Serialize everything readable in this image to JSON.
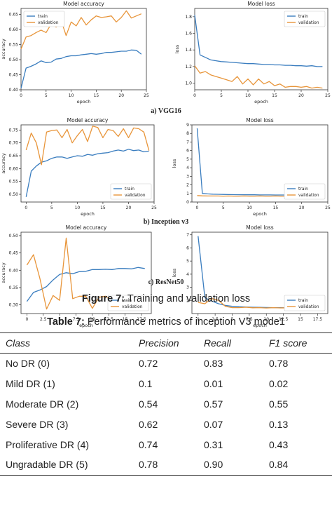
{
  "figure": {
    "caption_label": "Figure 7:",
    "caption_text": " Training and validation loss",
    "panels": [
      {
        "caption": "a) VGG16"
      },
      {
        "caption": "b) Inception v3"
      },
      {
        "caption": "c) ResNet50"
      }
    ]
  },
  "chart_data": [
    {
      "type": "line",
      "title": "Model accuracy",
      "xlabel": "epoch",
      "ylabel": "accuracy",
      "xlim": [
        0,
        25
      ],
      "ylim": [
        0.4,
        0.67
      ],
      "xticks": [
        0,
        5,
        10,
        15,
        20,
        25
      ],
      "yticks": [
        0.4,
        0.45,
        0.5,
        0.55,
        0.6,
        0.65
      ],
      "legend": "top-left",
      "series": [
        {
          "name": "train",
          "color": "#3a7dbf",
          "x": [
            0,
            1,
            2,
            3,
            4,
            5,
            6,
            7,
            8,
            9,
            10,
            11,
            12,
            13,
            14,
            15,
            16,
            17,
            18,
            19,
            20,
            21,
            22,
            23,
            24
          ],
          "y": [
            0.405,
            0.472,
            0.478,
            0.486,
            0.496,
            0.49,
            0.492,
            0.502,
            0.504,
            0.51,
            0.513,
            0.513,
            0.516,
            0.518,
            0.52,
            0.518,
            0.52,
            0.524,
            0.524,
            0.526,
            0.528,
            0.528,
            0.532,
            0.531,
            0.518
          ]
        },
        {
          "name": "validation",
          "color": "#e8953a",
          "x": [
            0,
            1,
            2,
            3,
            4,
            5,
            6,
            7,
            8,
            9,
            10,
            11,
            12,
            13,
            14,
            15,
            16,
            17,
            18,
            19,
            20,
            21,
            22,
            23,
            24
          ],
          "y": [
            0.535,
            0.575,
            0.58,
            0.59,
            0.598,
            0.59,
            0.618,
            0.608,
            0.63,
            0.58,
            0.625,
            0.612,
            0.64,
            0.615,
            0.632,
            0.645,
            0.64,
            0.642,
            0.645,
            0.625,
            0.64,
            0.662,
            0.638,
            0.645,
            0.652
          ]
        }
      ]
    },
    {
      "type": "line",
      "title": "Model loss",
      "xlabel": "epoch",
      "ylabel": "loss",
      "xlim": [
        0,
        25
      ],
      "ylim": [
        0.92,
        1.9
      ],
      "xticks": [
        0,
        5,
        10,
        15,
        20,
        25
      ],
      "yticks": [
        1.0,
        1.2,
        1.4,
        1.6,
        1.8
      ],
      "legend": "top-right",
      "series": [
        {
          "name": "train",
          "color": "#3a7dbf",
          "x": [
            0,
            1,
            2,
            3,
            4,
            5,
            6,
            7,
            8,
            9,
            10,
            11,
            12,
            13,
            14,
            15,
            16,
            17,
            18,
            19,
            20,
            21,
            22,
            23,
            24
          ],
          "y": [
            1.82,
            1.34,
            1.31,
            1.28,
            1.27,
            1.26,
            1.255,
            1.25,
            1.245,
            1.24,
            1.235,
            1.235,
            1.23,
            1.225,
            1.225,
            1.22,
            1.22,
            1.215,
            1.215,
            1.21,
            1.21,
            1.205,
            1.21,
            1.2,
            1.2
          ]
        },
        {
          "name": "validation",
          "color": "#e8953a",
          "x": [
            0,
            1,
            2,
            3,
            4,
            5,
            6,
            7,
            8,
            9,
            10,
            11,
            12,
            13,
            14,
            15,
            16,
            17,
            18,
            19,
            20,
            21,
            22,
            23,
            24
          ],
          "y": [
            1.21,
            1.12,
            1.14,
            1.1,
            1.08,
            1.06,
            1.04,
            1.02,
            1.08,
            0.99,
            1.05,
            0.98,
            1.05,
            0.99,
            1.02,
            0.97,
            0.99,
            0.95,
            0.96,
            0.96,
            0.95,
            0.96,
            0.94,
            0.95,
            0.94
          ]
        }
      ]
    },
    {
      "type": "line",
      "title": "Model accuracy",
      "xlabel": "epoch",
      "ylabel": "accuracy",
      "xlim": [
        -1,
        25
      ],
      "ylim": [
        0.47,
        0.77
      ],
      "xticks": [
        0,
        5,
        10,
        15,
        20,
        25
      ],
      "yticks": [
        0.5,
        0.55,
        0.6,
        0.65,
        0.7,
        0.75
      ],
      "legend": "bottom-right",
      "series": [
        {
          "name": "train",
          "color": "#3a7dbf",
          "x": [
            0,
            1,
            2,
            3,
            4,
            5,
            6,
            7,
            8,
            9,
            10,
            11,
            12,
            13,
            14,
            15,
            16,
            17,
            18,
            19,
            20,
            21,
            22,
            23,
            24
          ],
          "y": [
            0.49,
            0.59,
            0.61,
            0.625,
            0.63,
            0.64,
            0.645,
            0.645,
            0.64,
            0.645,
            0.65,
            0.648,
            0.655,
            0.652,
            0.658,
            0.66,
            0.662,
            0.668,
            0.672,
            0.668,
            0.675,
            0.67,
            0.672,
            0.665,
            0.668
          ]
        },
        {
          "name": "validation",
          "color": "#e8953a",
          "x": [
            0,
            1,
            2,
            3,
            4,
            5,
            6,
            7,
            8,
            9,
            10,
            11,
            12,
            13,
            14,
            15,
            16,
            17,
            18,
            19,
            20,
            21,
            22,
            23,
            24
          ],
          "y": [
            0.672,
            0.738,
            0.7,
            0.615,
            0.742,
            0.748,
            0.75,
            0.72,
            0.752,
            0.7,
            0.728,
            0.752,
            0.705,
            0.765,
            0.76,
            0.72,
            0.752,
            0.748,
            0.725,
            0.755,
            0.72,
            0.758,
            0.755,
            0.742,
            0.67
          ]
        }
      ]
    },
    {
      "type": "line",
      "title": "Model loss",
      "xlabel": "epoch",
      "ylabel": "loss",
      "xlim": [
        -1,
        25
      ],
      "ylim": [
        0,
        9
      ],
      "xticks": [
        0,
        5,
        10,
        15,
        20,
        25
      ],
      "yticks": [
        0,
        1,
        2,
        3,
        4,
        5,
        6,
        7,
        8,
        9
      ],
      "legend": "bottom-right",
      "series": [
        {
          "name": "train",
          "color": "#3a7dbf",
          "x": [
            0,
            1,
            2,
            3,
            4,
            5,
            6,
            7,
            8,
            9,
            10,
            11,
            12,
            13,
            14,
            15,
            16,
            17,
            18,
            19,
            20,
            21,
            22,
            23,
            24
          ],
          "y": [
            8.6,
            1.0,
            0.95,
            0.92,
            0.9,
            0.88,
            0.87,
            0.86,
            0.85,
            0.85,
            0.84,
            0.84,
            0.83,
            0.83,
            0.83,
            0.82,
            0.82,
            0.82,
            0.81,
            0.81,
            0.81,
            0.8,
            0.8,
            0.8,
            0.8
          ]
        },
        {
          "name": "validation",
          "color": "#e8953a",
          "x": [
            0,
            1,
            2,
            3,
            4,
            5,
            6,
            7,
            8,
            9,
            10,
            11,
            12,
            13,
            14,
            15,
            16,
            17,
            18,
            19,
            20,
            21,
            22,
            23,
            24
          ],
          "y": [
            0.75,
            0.72,
            0.7,
            0.7,
            0.7,
            0.69,
            0.7,
            0.69,
            0.69,
            0.7,
            0.69,
            0.69,
            0.7,
            0.69,
            0.69,
            0.7,
            0.69,
            0.69,
            0.7,
            0.69,
            0.69,
            0.7,
            0.69,
            0.7,
            0.7
          ]
        }
      ]
    },
    {
      "type": "line",
      "title": "Model accuracy",
      "xlabel": "epoch",
      "ylabel": "accuracy",
      "xlim": [
        -0.9,
        19
      ],
      "ylim": [
        0.275,
        0.51
      ],
      "xticks": [
        0.0,
        2.5,
        5.0,
        7.5,
        10.0,
        12.5,
        15.0,
        17.5
      ],
      "yticks": [
        0.3,
        0.35,
        0.4,
        0.45,
        0.5
      ],
      "legend": "bottom-right",
      "series": [
        {
          "name": "train",
          "color": "#3a7dbf",
          "x": [
            0,
            1,
            2,
            3,
            4,
            5,
            6,
            7,
            8,
            9,
            10,
            11,
            12,
            13,
            14,
            15,
            16,
            17,
            18
          ],
          "y": [
            0.31,
            0.336,
            0.343,
            0.353,
            0.372,
            0.388,
            0.393,
            0.39,
            0.396,
            0.397,
            0.402,
            0.402,
            0.403,
            0.402,
            0.405,
            0.405,
            0.404,
            0.408,
            0.405
          ]
        },
        {
          "name": "validation",
          "color": "#e8953a",
          "x": [
            0,
            1,
            2,
            3,
            4,
            5,
            6,
            7,
            8,
            9,
            10,
            11,
            12,
            13,
            14,
            15,
            16,
            17,
            18
          ],
          "y": [
            0.415,
            0.445,
            0.375,
            0.288,
            0.327,
            0.313,
            0.493,
            0.318,
            0.325,
            0.325,
            0.29,
            0.322,
            0.325,
            0.312,
            0.314,
            0.325,
            0.312,
            0.318,
            0.325
          ]
        }
      ]
    },
    {
      "type": "line",
      "title": "Model loss",
      "xlabel": "epoch",
      "ylabel": "loss",
      "xlim": [
        -0.9,
        19
      ],
      "ylim": [
        1.0,
        7.2
      ],
      "xticks": [
        0.0,
        2.5,
        5.0,
        7.5,
        10.0,
        12.5,
        15.0,
        17.5
      ],
      "yticks": [
        2,
        3,
        4,
        5,
        6,
        7
      ],
      "legend": "bottom-right",
      "series": [
        {
          "name": "train",
          "color": "#3a7dbf",
          "x": [
            0,
            1,
            2,
            3,
            4,
            5,
            6,
            7,
            8,
            9,
            10,
            11,
            12,
            13,
            14,
            15,
            16,
            17,
            18
          ],
          "y": [
            6.9,
            2.2,
            1.95,
            1.75,
            1.62,
            1.55,
            1.52,
            1.5,
            1.48,
            1.47,
            1.46,
            1.45,
            1.45,
            1.44,
            1.44,
            1.43,
            1.43,
            1.42,
            1.42
          ]
        },
        {
          "name": "validation",
          "color": "#e8953a",
          "x": [
            0,
            1,
            2,
            3,
            4,
            5,
            6,
            7,
            8,
            9,
            10,
            11,
            12,
            13,
            14,
            15,
            16,
            17,
            18
          ],
          "y": [
            1.85,
            1.75,
            2.15,
            2.0,
            1.55,
            1.45,
            1.45,
            1.48,
            1.44,
            1.45,
            1.42,
            1.45,
            1.43,
            1.44,
            1.42,
            1.43,
            1.42,
            1.42,
            1.41
          ]
        }
      ]
    }
  ],
  "table": {
    "caption_label": "Table 7:",
    "caption_text": " Performance metrics of inception V3 mode1",
    "headers": [
      "Class",
      "Precision",
      "Recall",
      "F1 score"
    ],
    "rows": [
      [
        "No DR (0)",
        "0.72",
        "0.83",
        "0.78"
      ],
      [
        "Mild DR (1)",
        "0.1",
        "0.01",
        "0.02"
      ],
      [
        "Moderate DR (2)",
        "0.54",
        "0.57",
        "0.55"
      ],
      [
        "Severe DR (3)",
        "0.62",
        "0.07",
        "0.13"
      ],
      [
        "Proliferative DR (4)",
        "0.74",
        "0.31",
        "0.43"
      ],
      [
        "Ungradable DR (5)",
        "0.78",
        "0.90",
        "0.84"
      ]
    ]
  }
}
